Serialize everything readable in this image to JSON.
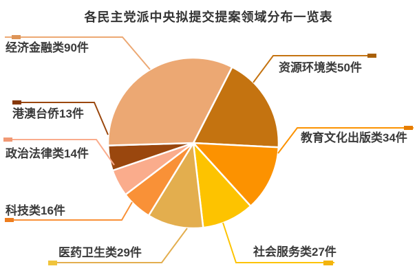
{
  "title": "各民主党派中央拟提交提案领域分布一览表",
  "chart_data": {
    "type": "pie",
    "title": "各民主党派中央拟提交提案领域分布一览表",
    "unit": "件",
    "legend_position": "callout-labels",
    "start_angle_deg": 27,
    "slice_border_color": "#ffffff",
    "slices": [
      {
        "name": "资源环境类",
        "value": 50,
        "label": "资源环境类50件",
        "color": "#C47310",
        "marker_color": "#A96008"
      },
      {
        "name": "教育文化出版类",
        "value": 34,
        "label": "教育文化出版类34件",
        "color": "#FC9200",
        "marker_color": "#E67D00"
      },
      {
        "name": "社会服务类",
        "value": 27,
        "label": "社会服务类27件",
        "color": "#FDC300",
        "marker_color": "#F3B40E"
      },
      {
        "name": "医药卫生类",
        "value": 29,
        "label": "医药卫生类29件",
        "color": "#E3AE4E",
        "marker_color": "#F0C43C"
      },
      {
        "name": "科技类",
        "value": 16,
        "label": "科技类16件",
        "color": "#F99137",
        "marker_color": "#EE7D1E"
      },
      {
        "name": "政治法律类",
        "value": 14,
        "label": "政治法律类14件",
        "color": "#FAAC8C",
        "marker_color": "#F19974"
      },
      {
        "name": "港澳台侨",
        "value": 13,
        "label": "港澳台侨13件",
        "color": "#9A470E",
        "marker_color": "#86380A"
      },
      {
        "name": "经济金融类",
        "value": 90,
        "label": "经济金融类90件",
        "color": "#ECA873",
        "marker_color": "#DD9457"
      }
    ]
  },
  "text_color": "#3a3a3a"
}
